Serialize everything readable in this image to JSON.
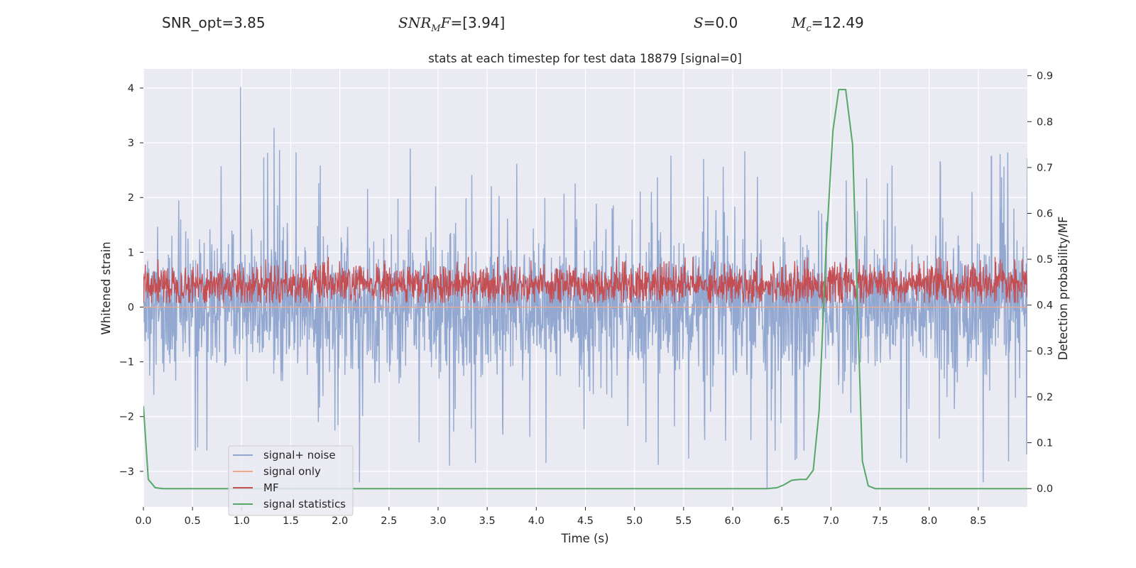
{
  "header": {
    "snr_opt": "SNR_opt=3.85",
    "snr_mf_prefix": "SNR",
    "snr_mf_sub": "M",
    "snr_mf_suffix": "F",
    "snr_mf_value": "=[3.94]",
    "s_label": "S",
    "s_value": "=0.0",
    "mc_label": "M",
    "mc_sub": "c",
    "mc_value": "=12.49"
  },
  "chart_data": {
    "type": "line",
    "title": "stats at each timestep for test data 18879 [signal=0]",
    "xlabel": "Time (s)",
    "ylabel": "Whitened strain",
    "y2label": "Detection probability/MF",
    "xlim": [
      0,
      9.0
    ],
    "ylim": [
      -3.65,
      4.35
    ],
    "y2lim": [
      -0.04,
      0.915
    ],
    "xticks": [
      0.0,
      0.5,
      1.0,
      1.5,
      2.0,
      2.5,
      3.0,
      3.5,
      4.0,
      4.5,
      5.0,
      5.5,
      6.0,
      6.5,
      7.0,
      7.5,
      8.0,
      8.5
    ],
    "xtick_labels": [
      "0.0",
      "0.5",
      "1.0",
      "1.5",
      "2.0",
      "2.5",
      "3.0",
      "3.5",
      "4.0",
      "4.5",
      "5.0",
      "5.5",
      "6.0",
      "6.5",
      "7.0",
      "7.5",
      "8.0",
      "8.5"
    ],
    "yticks": [
      -3,
      -2,
      -1,
      0,
      1,
      2,
      3,
      4
    ],
    "ytick_labels": [
      "−3",
      "−2",
      "−1",
      "0",
      "1",
      "2",
      "3",
      "4"
    ],
    "y2ticks": [
      0.0,
      0.1,
      0.2,
      0.3,
      0.4,
      0.5,
      0.6,
      0.7,
      0.8,
      0.9
    ],
    "y2tick_labels": [
      "0.0",
      "0.1",
      "0.2",
      "0.3",
      "0.4",
      "0.5",
      "0.6",
      "0.7",
      "0.8",
      "0.9"
    ],
    "grid": true,
    "legend_position": "lower-left",
    "series": [
      {
        "name": "signal+ noise",
        "axis": "left",
        "color": "#92a8d1",
        "note": "dense noise, approx. ±1.5 typical, peaks near 4.0 at t≈1.0 and −3.3 at t≈6.35"
      },
      {
        "name": "signal only",
        "axis": "left",
        "color": "#f2a98b",
        "values": "zero (signal=0)"
      },
      {
        "name": "MF",
        "axis": "right",
        "color": "#c44e52",
        "note": "fluctuates between about 0.40 and 0.50"
      },
      {
        "name": "signal statistics",
        "axis": "right",
        "color": "#55a868",
        "x": [
          0.0,
          0.05,
          0.12,
          0.2,
          0.5,
          1.0,
          2.0,
          3.0,
          4.0,
          5.0,
          6.0,
          6.35,
          6.45,
          6.52,
          6.6,
          6.68,
          6.75,
          6.82,
          6.88,
          6.95,
          7.02,
          7.08,
          7.15,
          7.22,
          7.28,
          7.32,
          7.38,
          7.45,
          7.6,
          8.0,
          8.5,
          9.0
        ],
        "y": [
          0.18,
          0.02,
          0.002,
          0.0,
          0.0,
          0.0,
          0.0,
          0.0,
          0.0,
          0.0,
          0.0,
          0.0,
          0.002,
          0.008,
          0.018,
          0.02,
          0.02,
          0.04,
          0.17,
          0.52,
          0.78,
          0.87,
          0.87,
          0.75,
          0.33,
          0.06,
          0.006,
          0.0,
          0.0,
          0.0,
          0.0,
          0.0
        ]
      }
    ]
  },
  "colors": {
    "plot_bg": "#eaeaf2",
    "grid": "#ffffff",
    "noise": "#92a8d1",
    "signal": "#f2a98b",
    "mf": "#c44e52",
    "stat": "#55a868"
  }
}
